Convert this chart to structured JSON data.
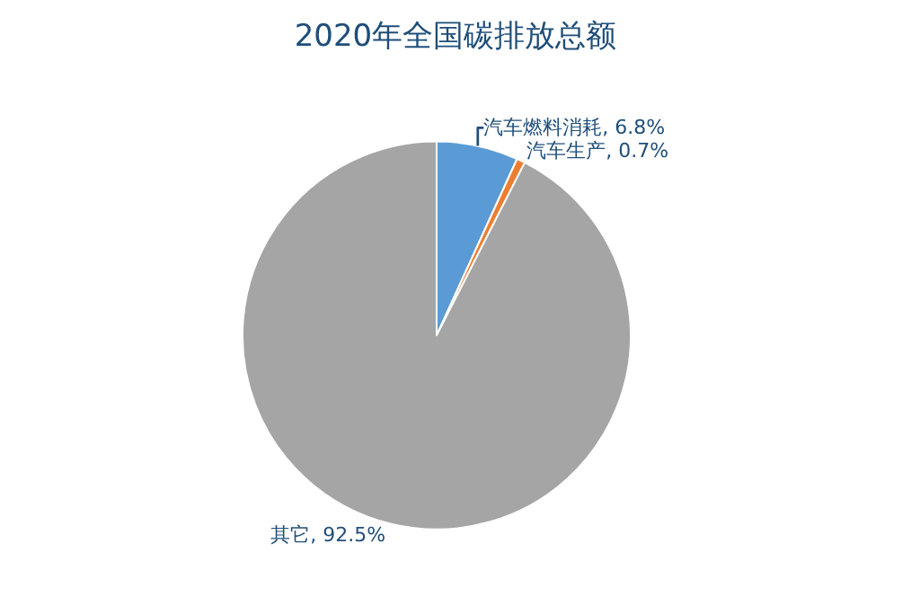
{
  "chart_data": {
    "type": "pie",
    "title": "2020年全国碳排放总额",
    "categories": [
      "汽车燃料消耗",
      "汽车生产",
      "其它"
    ],
    "values": [
      6.8,
      0.7,
      92.5
    ],
    "colors": [
      "#5b9bd5",
      "#ed7d31",
      "#a5a5a5"
    ],
    "value_labels": [
      "6.8%",
      "0.7%",
      "92.5%"
    ],
    "legend": false
  }
}
